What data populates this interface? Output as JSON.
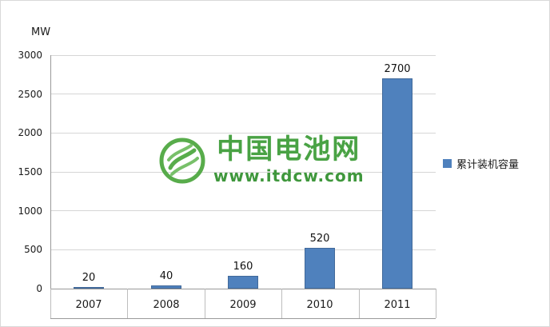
{
  "chart_data": {
    "type": "bar",
    "title": "",
    "unit_label": "MW",
    "categories": [
      "2007",
      "2008",
      "2009",
      "2010",
      "2011"
    ],
    "series": [
      {
        "name": "累计装机容量",
        "values": [
          20,
          40,
          160,
          520,
          2700
        ]
      }
    ],
    "ylim": [
      0,
      3000
    ],
    "ytick_step": 500,
    "bar_color": "#4F81BD",
    "grid": true,
    "legend_position": "right"
  },
  "watermark": {
    "title": "中国电池网",
    "subtitle": "www.itdcw.com",
    "color": "#3a9b35"
  }
}
